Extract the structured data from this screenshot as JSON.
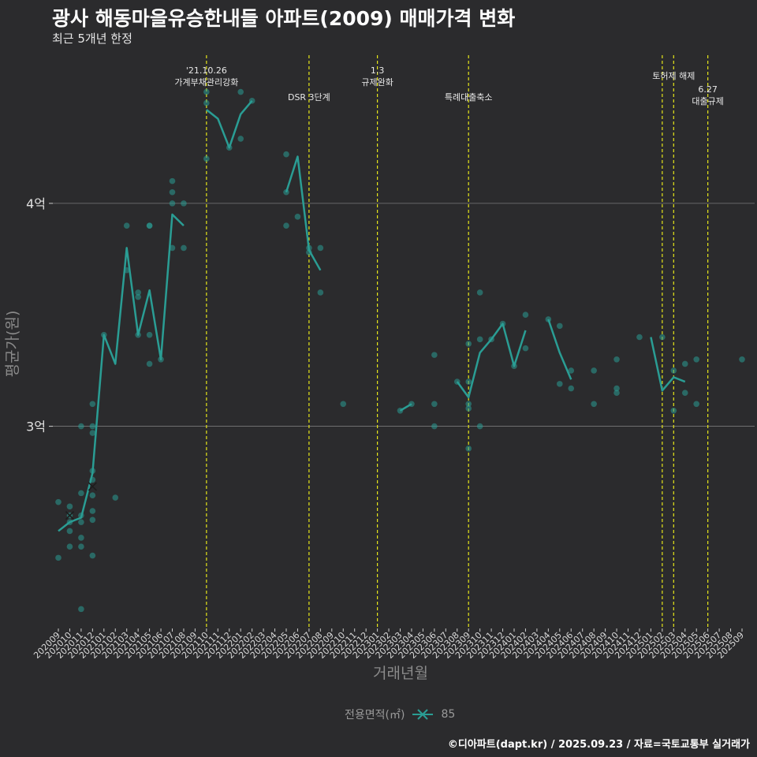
{
  "header": {
    "title": "광사 해동마을유승한내들 아파트(2009) 매매가격 변화",
    "subtitle": "최근 5개년 한정"
  },
  "footer": {
    "credit": "©디아파트(dapt.kr) / 2025.09.23 / 자료=국토교통부 실거래가"
  },
  "legend": {
    "title": "전용면적(㎡)",
    "items": [
      {
        "label": "85",
        "color": "#2a9d94"
      }
    ]
  },
  "colors": {
    "background": "#2b2b2d",
    "series": "#2a9d94",
    "event_line": "#e6e619",
    "grid": "#7a7a7a"
  },
  "chart_data": {
    "type": "line",
    "title": "광사 해동마을유승한내들 아파트(2009) 매매가격 변화",
    "xlabel": "거래년월",
    "ylabel": "평균가(원)",
    "categories": [
      "202009",
      "202010",
      "202011",
      "202012",
      "202101",
      "202102",
      "202103",
      "202104",
      "202105",
      "202106",
      "202107",
      "202108",
      "202109",
      "202110",
      "202111",
      "202112",
      "202201",
      "202202",
      "202203",
      "202204",
      "202205",
      "202206",
      "202207",
      "202208",
      "202209",
      "202210",
      "202211",
      "202212",
      "202301",
      "202302",
      "202303",
      "202304",
      "202305",
      "202306",
      "202307",
      "202308",
      "202309",
      "202310",
      "202311",
      "202312",
      "202401",
      "202402",
      "202403",
      "202404",
      "202405",
      "202406",
      "202407",
      "202408",
      "202409",
      "202410",
      "202411",
      "202412",
      "202501",
      "202502",
      "202503",
      "202504",
      "202505",
      "202506",
      "202507",
      "202508",
      "202509"
    ],
    "yticks": [
      {
        "value": 3.0,
        "label": "3억"
      },
      {
        "value": 4.0,
        "label": "4억"
      }
    ],
    "ylim": [
      2.1,
      4.7
    ],
    "grid": true,
    "legend_position": "bottom",
    "series": [
      {
        "name": "85",
        "values": [
          2.53,
          2.57,
          2.59,
          2.79,
          3.41,
          3.28,
          3.8,
          3.41,
          3.61,
          3.3,
          3.95,
          3.9,
          null,
          4.42,
          4.38,
          4.25,
          4.4,
          4.46,
          null,
          null,
          4.05,
          4.21,
          3.79,
          3.7,
          null,
          null,
          null,
          null,
          null,
          null,
          3.07,
          3.1,
          null,
          null,
          null,
          3.2,
          3.13,
          3.33,
          3.39,
          3.46,
          3.27,
          3.43,
          null,
          3.48,
          3.33,
          3.21,
          null,
          null,
          null,
          null,
          null,
          null,
          3.4,
          3.16,
          3.22,
          3.2,
          null,
          null,
          null,
          null,
          null
        ]
      }
    ],
    "scatter_points": [
      {
        "x": "202009",
        "y": [
          2.66,
          2.41
        ]
      },
      {
        "x": "202010",
        "y": [
          2.64,
          2.6,
          2.57,
          2.53,
          2.46
        ]
      },
      {
        "x": "202011",
        "y": [
          3.0,
          2.7,
          2.6,
          2.57,
          2.5,
          2.46,
          2.18
        ]
      },
      {
        "x": "202012",
        "y": [
          3.1,
          3.0,
          2.97,
          2.8,
          2.76,
          2.69,
          2.62,
          2.58,
          2.42
        ]
      },
      {
        "x": "202101",
        "y": [
          3.41
        ]
      },
      {
        "x": "202102",
        "y": [
          2.68
        ]
      },
      {
        "x": "202103",
        "y": [
          3.9,
          3.7
        ]
      },
      {
        "x": "202104",
        "y": [
          3.6,
          3.58,
          3.41
        ]
      },
      {
        "x": "202105",
        "y": [
          3.9,
          3.9,
          3.41,
          3.28
        ]
      },
      {
        "x": "202106",
        "y": [
          3.3
        ]
      },
      {
        "x": "202107",
        "y": [
          4.1,
          4.05,
          4.0,
          3.8
        ]
      },
      {
        "x": "202108",
        "y": [
          4.0,
          3.8
        ]
      },
      {
        "x": "202110",
        "y": [
          4.5,
          4.45,
          4.2
        ]
      },
      {
        "x": "202112",
        "y": [
          4.25
        ]
      },
      {
        "x": "202201",
        "y": [
          4.5,
          4.29
        ]
      },
      {
        "x": "202202",
        "y": [
          4.46
        ]
      },
      {
        "x": "202205",
        "y": [
          4.22,
          4.05,
          3.9
        ]
      },
      {
        "x": "202206",
        "y": [
          3.94
        ]
      },
      {
        "x": "202207",
        "y": [
          3.8,
          3.78
        ]
      },
      {
        "x": "202208",
        "y": [
          3.8,
          3.6
        ]
      },
      {
        "x": "202210",
        "y": [
          3.1
        ]
      },
      {
        "x": "202303",
        "y": [
          3.07
        ]
      },
      {
        "x": "202304",
        "y": [
          3.1
        ]
      },
      {
        "x": "202306",
        "y": [
          3.32,
          3.1,
          3.0
        ]
      },
      {
        "x": "202308",
        "y": [
          3.2
        ]
      },
      {
        "x": "202309",
        "y": [
          3.37,
          3.2,
          3.1,
          3.08,
          2.9
        ]
      },
      {
        "x": "202310",
        "y": [
          3.6,
          3.39,
          3.0
        ]
      },
      {
        "x": "202311",
        "y": [
          3.39
        ]
      },
      {
        "x": "202312",
        "y": [
          3.46
        ]
      },
      {
        "x": "202401",
        "y": [
          3.27
        ]
      },
      {
        "x": "202402",
        "y": [
          3.5,
          3.35
        ]
      },
      {
        "x": "202404",
        "y": [
          3.48
        ]
      },
      {
        "x": "202405",
        "y": [
          3.45,
          3.19
        ]
      },
      {
        "x": "202406",
        "y": [
          3.25,
          3.17
        ]
      },
      {
        "x": "202408",
        "y": [
          3.25,
          3.1
        ]
      },
      {
        "x": "202410",
        "y": [
          3.3,
          3.17,
          3.15
        ]
      },
      {
        "x": "202412",
        "y": [
          3.4
        ]
      },
      {
        "x": "202502",
        "y": [
          3.4
        ]
      },
      {
        "x": "202503",
        "y": [
          3.25,
          3.07
        ]
      },
      {
        "x": "202504",
        "y": [
          3.28,
          3.15
        ]
      },
      {
        "x": "202505",
        "y": [
          3.3,
          3.1
        ]
      },
      {
        "x": "202509",
        "y": [
          3.3
        ]
      }
    ],
    "cross_markers": [
      {
        "x": "202010",
        "y": 2.6
      },
      {
        "x": "202012",
        "y": 2.73
      }
    ],
    "events": [
      {
        "x": "202110",
        "lines": [
          "'21.10.26",
          "가계부채관리강화"
        ],
        "level": 0
      },
      {
        "x": "202207",
        "lines": [
          "DSR 3단계"
        ],
        "level": 2
      },
      {
        "x": "202301",
        "lines": [
          "1.3",
          "규제완화"
        ],
        "level": 0
      },
      {
        "x": "202309",
        "lines": [
          "특례대출축소"
        ],
        "level": 2
      },
      {
        "x": "202502",
        "lines": [],
        "level": 1
      },
      {
        "x": "202503",
        "lines": [
          "토허제 해제"
        ],
        "level": 1
      },
      {
        "x": "202506",
        "lines": [
          "6.27",
          "대출규제"
        ],
        "level": 3
      }
    ]
  }
}
